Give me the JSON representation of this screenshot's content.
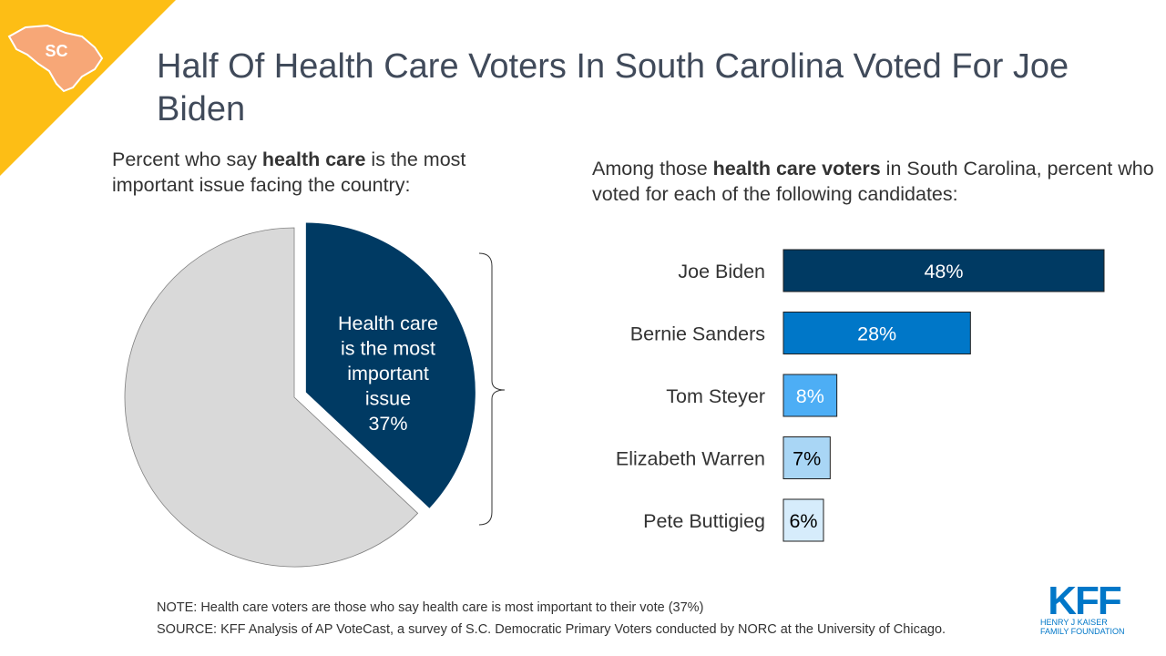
{
  "badge": {
    "text": "SC",
    "triangle_color": "#FDBE15",
    "state_color": "#F7A777"
  },
  "title": "Half Of Health Care Voters In South Carolina Voted For Joe Biden",
  "pie_subtitle": {
    "before": "Percent who say ",
    "bold": "health care",
    "after": " is the most important issue facing the country:"
  },
  "bar_subtitle": {
    "before": "Among those ",
    "bold": "health care voters",
    "after": " in South Carolina, percent who voted for each of the following candidates:"
  },
  "chart_data": [
    {
      "type": "pie",
      "slices": [
        {
          "label": "Health care is the most important issue",
          "value": 37,
          "value_label": "37%",
          "color": "#003A63",
          "exploded": true
        },
        {
          "label": "",
          "value": 63,
          "color": "#D9D9D9",
          "exploded": false
        }
      ],
      "label_lines": [
        "Health care",
        "is the most",
        "important",
        "issue",
        "37%"
      ]
    },
    {
      "type": "bar",
      "orientation": "horizontal",
      "categories": [
        "Joe Biden",
        "Bernie Sanders",
        "Tom Steyer",
        "Elizabeth Warren",
        "Pete Buttigieg"
      ],
      "values": [
        48,
        28,
        8,
        7,
        6
      ],
      "value_labels": [
        "48%",
        "28%",
        "8%",
        "7%",
        "6%"
      ],
      "colors": [
        "#003A63",
        "#0077C8",
        "#4DAEF5",
        "#A9D6F5",
        "#D6ECFB"
      ],
      "label_colors": [
        "#FFFFFF",
        "#FFFFFF",
        "#FFFFFF",
        "#000000",
        "#000000"
      ],
      "xlim": [
        0,
        48
      ]
    }
  ],
  "note": "NOTE: Health care voters are those who say health care is most important to their vote (37%)",
  "source": "SOURCE: KFF Analysis of AP VoteCast, a survey of S.C. Democratic Primary Voters conducted by NORC at the University of Chicago.",
  "logo": {
    "text": "KFF",
    "line1": "HENRY J KAISER",
    "line2": "FAMILY FOUNDATION",
    "color": "#0077C8"
  }
}
